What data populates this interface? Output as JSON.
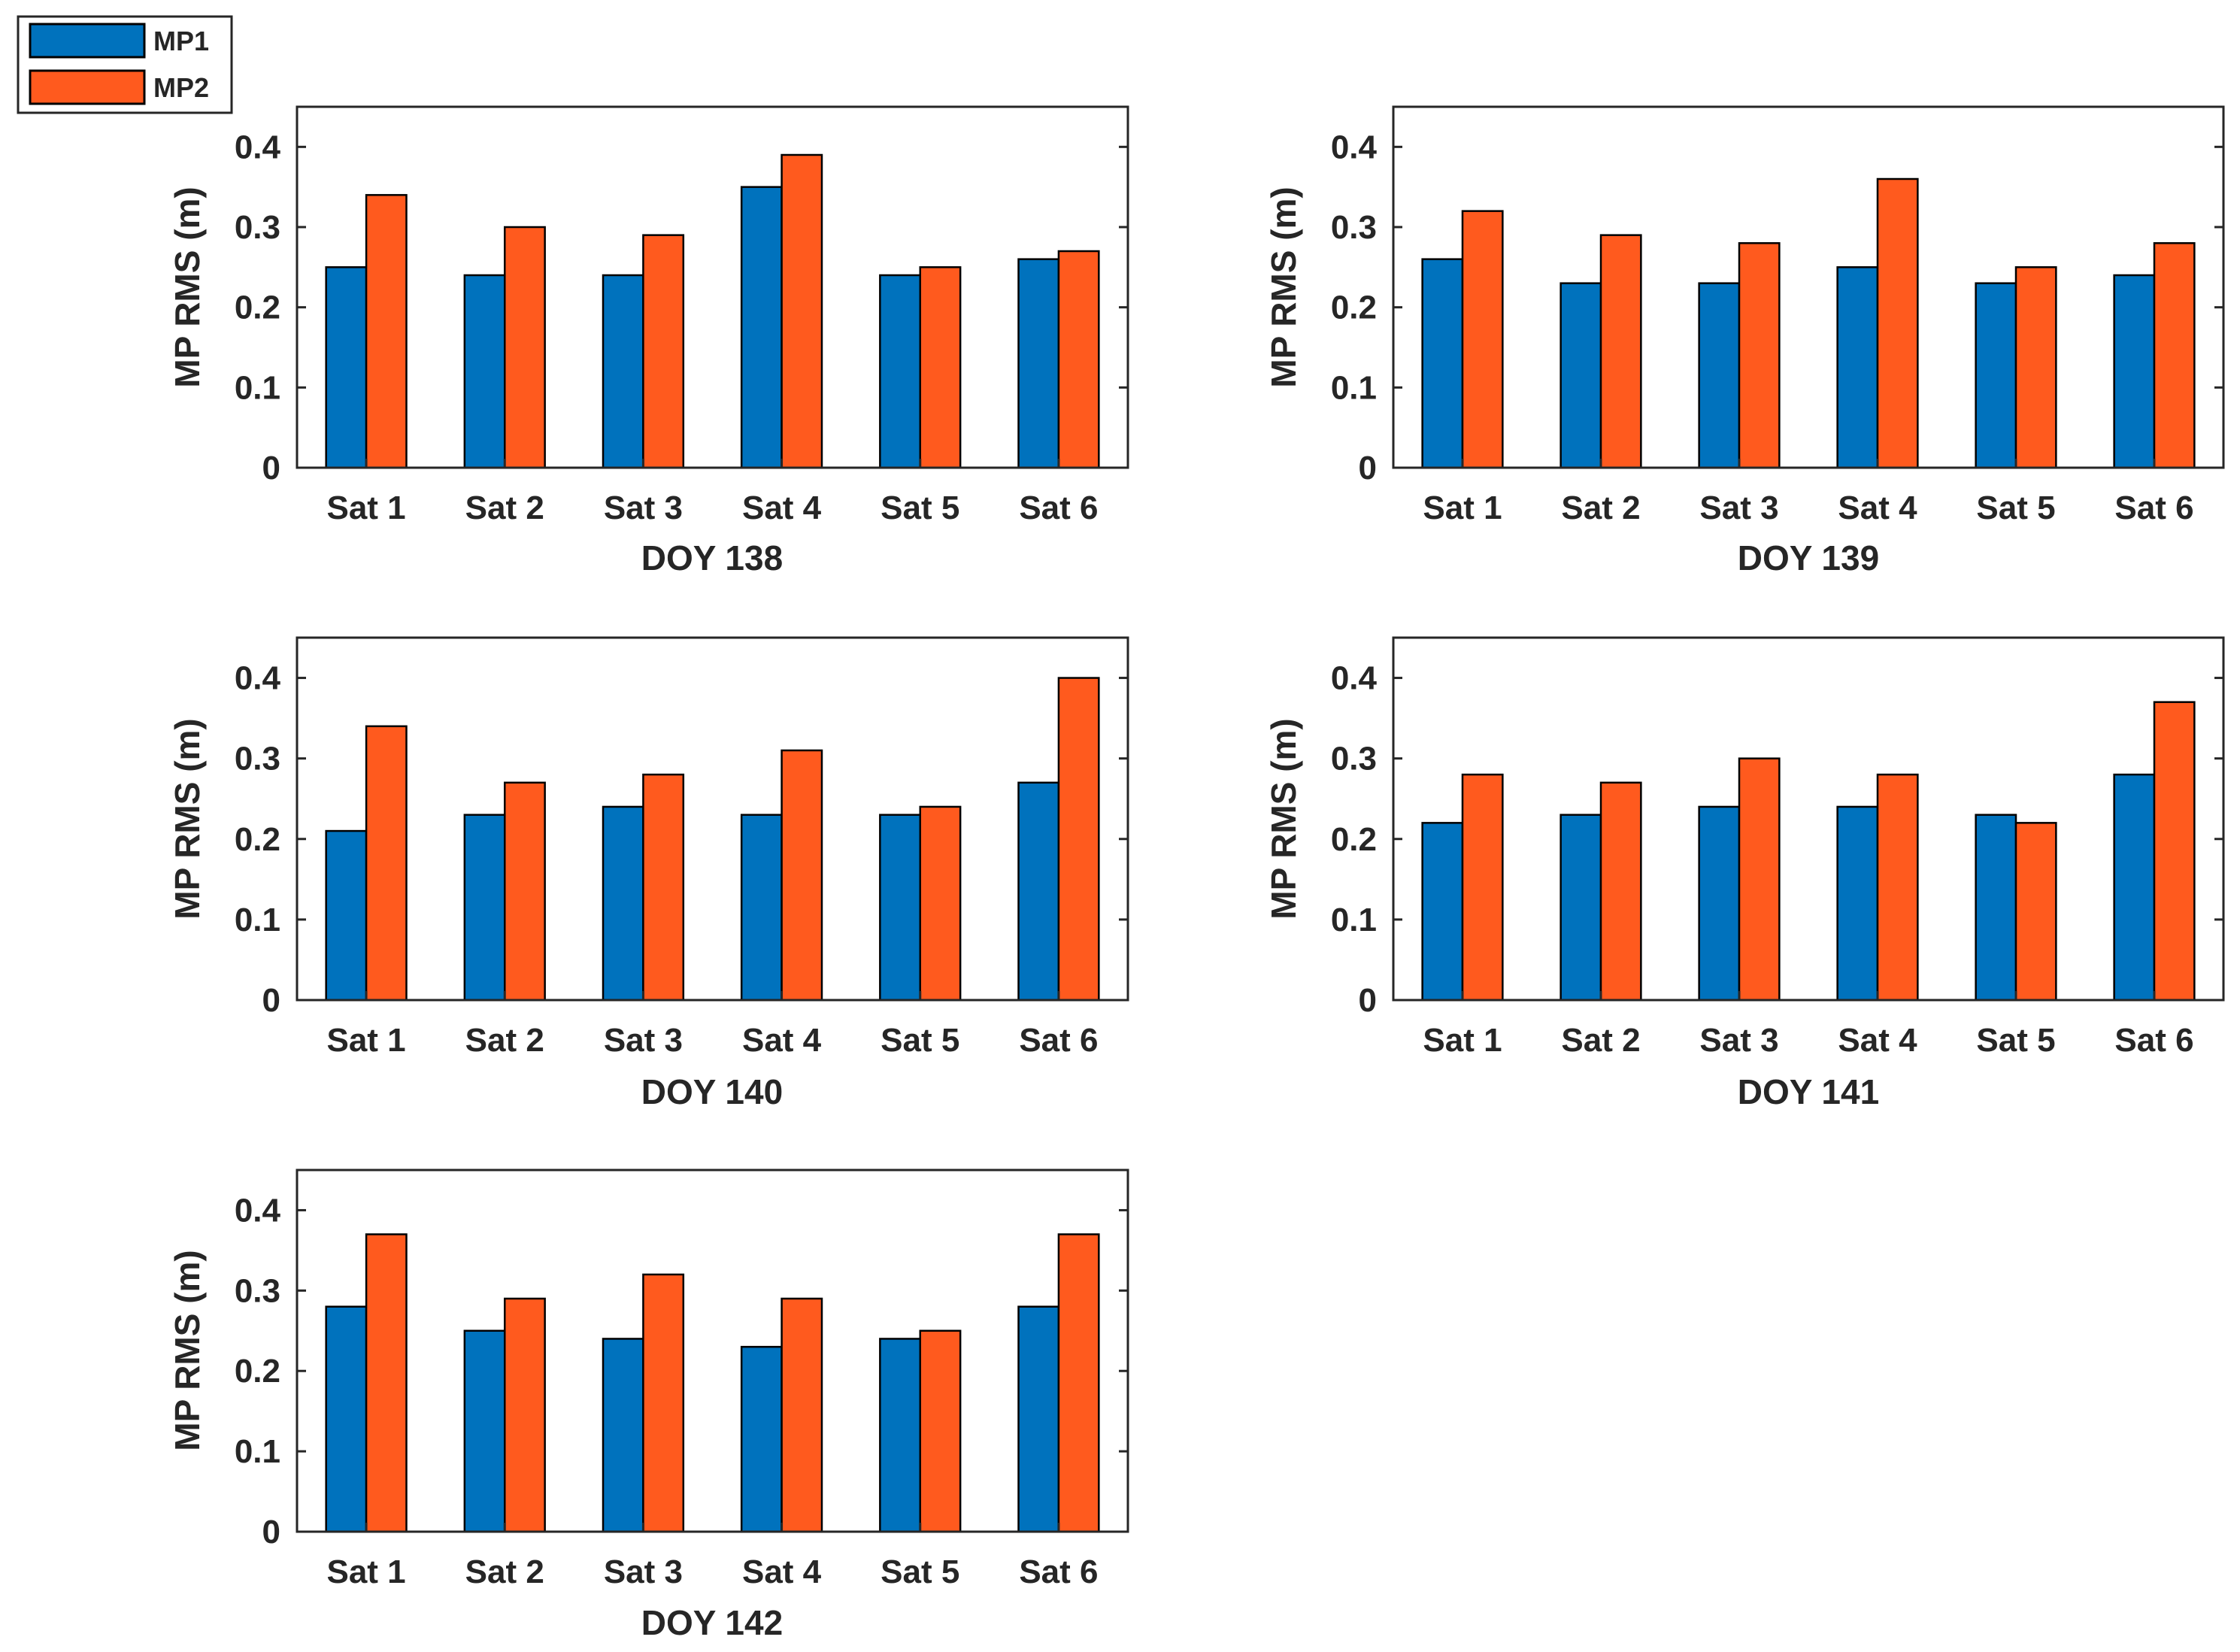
{
  "legend": [
    {
      "name": "MP1",
      "color": "#0072BD"
    },
    {
      "name": "MP2",
      "color": "#FF5A1E"
    }
  ],
  "chart_data": [
    {
      "type": "bar",
      "xlabel": "DOY 138",
      "ylabel": "MP RMS (m)",
      "categories": [
        "Sat 1",
        "Sat 2",
        "Sat 3",
        "Sat 4",
        "Sat 5",
        "Sat 6"
      ],
      "series": [
        {
          "name": "MP1",
          "values": [
            0.25,
            0.24,
            0.24,
            0.35,
            0.24,
            0.26
          ]
        },
        {
          "name": "MP2",
          "values": [
            0.34,
            0.3,
            0.29,
            0.39,
            0.25,
            0.27
          ]
        }
      ],
      "ylim": [
        0,
        0.45
      ],
      "yticks": [
        "0",
        "0.1",
        "0.2",
        "0.3",
        "0.4"
      ]
    },
    {
      "type": "bar",
      "xlabel": "DOY 139",
      "ylabel": "MP RMS (m)",
      "categories": [
        "Sat 1",
        "Sat 2",
        "Sat 3",
        "Sat 4",
        "Sat 5",
        "Sat 6"
      ],
      "series": [
        {
          "name": "MP1",
          "values": [
            0.26,
            0.23,
            0.23,
            0.25,
            0.23,
            0.24
          ]
        },
        {
          "name": "MP2",
          "values": [
            0.32,
            0.29,
            0.28,
            0.36,
            0.25,
            0.28
          ]
        }
      ],
      "ylim": [
        0,
        0.45
      ],
      "yticks": [
        "0",
        "0.1",
        "0.2",
        "0.3",
        "0.4"
      ]
    },
    {
      "type": "bar",
      "xlabel": "DOY 140",
      "ylabel": "MP RMS (m)",
      "categories": [
        "Sat 1",
        "Sat 2",
        "Sat 3",
        "Sat 4",
        "Sat 5",
        "Sat 6"
      ],
      "series": [
        {
          "name": "MP1",
          "values": [
            0.21,
            0.23,
            0.24,
            0.23,
            0.23,
            0.27
          ]
        },
        {
          "name": "MP2",
          "values": [
            0.34,
            0.27,
            0.28,
            0.31,
            0.24,
            0.4
          ]
        }
      ],
      "ylim": [
        0,
        0.45
      ],
      "yticks": [
        "0",
        "0.1",
        "0.2",
        "0.3",
        "0.4"
      ]
    },
    {
      "type": "bar",
      "xlabel": "DOY 141",
      "ylabel": "MP RMS (m)",
      "categories": [
        "Sat 1",
        "Sat 2",
        "Sat 3",
        "Sat 4",
        "Sat 5",
        "Sat 6"
      ],
      "series": [
        {
          "name": "MP1",
          "values": [
            0.22,
            0.23,
            0.24,
            0.24,
            0.23,
            0.28
          ]
        },
        {
          "name": "MP2",
          "values": [
            0.28,
            0.27,
            0.3,
            0.28,
            0.22,
            0.37
          ]
        }
      ],
      "ylim": [
        0,
        0.45
      ],
      "yticks": [
        "0",
        "0.1",
        "0.2",
        "0.3",
        "0.4"
      ]
    },
    {
      "type": "bar",
      "xlabel": "DOY 142",
      "ylabel": "MP RMS (m)",
      "categories": [
        "Sat 1",
        "Sat 2",
        "Sat 3",
        "Sat 4",
        "Sat 5",
        "Sat 6"
      ],
      "series": [
        {
          "name": "MP1",
          "values": [
            0.28,
            0.25,
            0.24,
            0.23,
            0.24,
            0.28
          ]
        },
        {
          "name": "MP2",
          "values": [
            0.37,
            0.29,
            0.32,
            0.29,
            0.25,
            0.37
          ]
        }
      ],
      "ylim": [
        0,
        0.45
      ],
      "yticks": [
        "0",
        "0.1",
        "0.2",
        "0.3",
        "0.4"
      ]
    }
  ]
}
